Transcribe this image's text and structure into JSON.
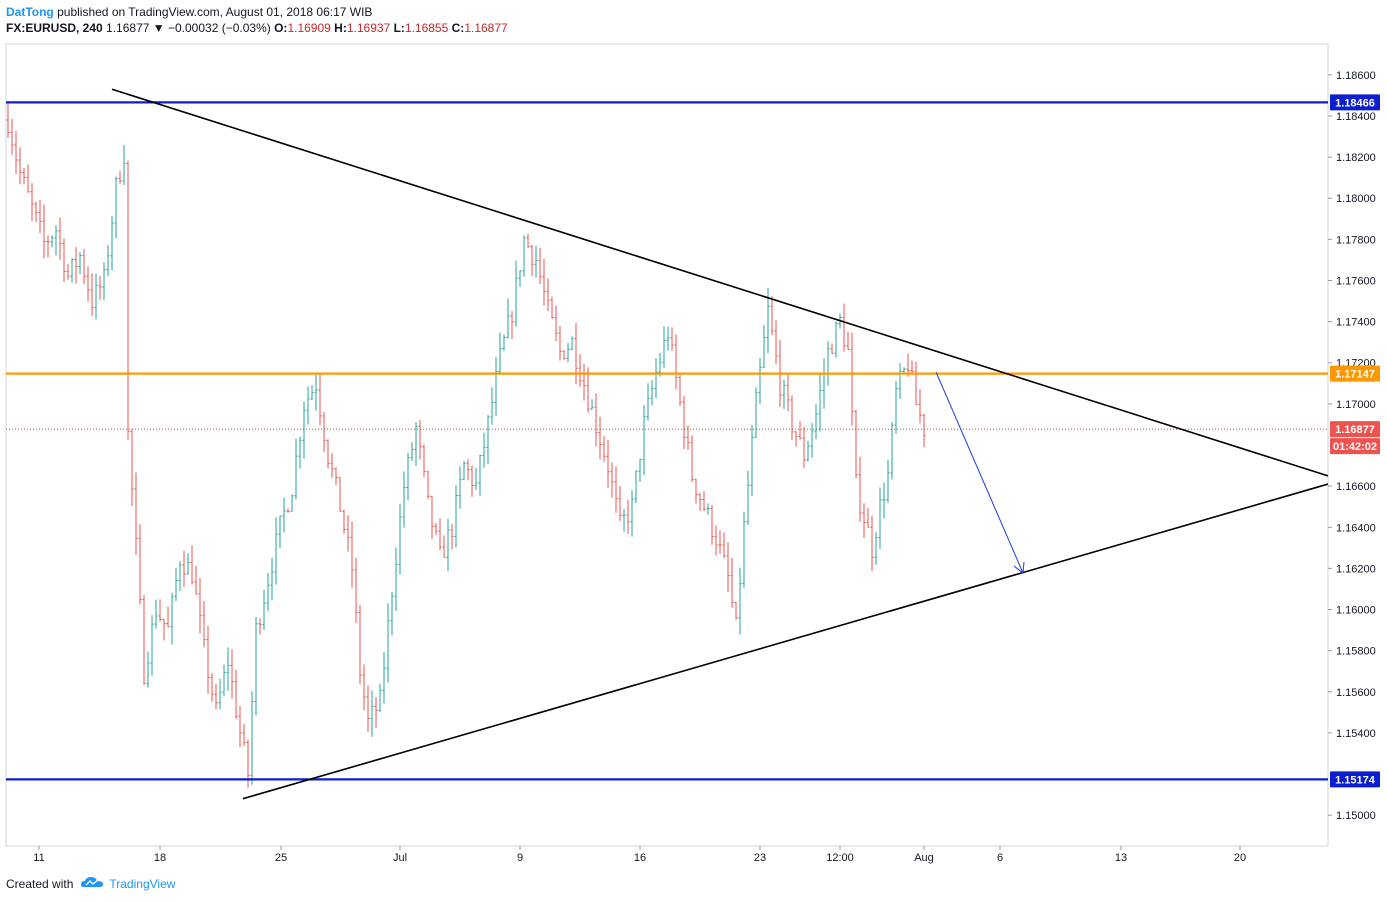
{
  "header": {
    "author": "DatTong",
    "published_text": "published on TradingView.com, August 01, 2018 06:17 WIB",
    "symbol": "FX:EURUSD, 240",
    "last": "1.16877",
    "change": "▼ −0.00032 (−0.03%)",
    "o_label": "O:",
    "o_value": "1.16909",
    "h_label": "H:",
    "h_value": "1.16937",
    "l_label": "L:",
    "l_value": "1.16855",
    "c_label": "C:",
    "c_value": "1.16877"
  },
  "footer": {
    "created_with": "Created with",
    "brand": "TradingView"
  },
  "colors": {
    "up": "#26a69a",
    "down": "#ef5350",
    "support_resistance": "#0b1fd1",
    "mid_level": "#ff9800",
    "trendline": "#000000",
    "arrow": "#1e3adb",
    "price_line": "#c62828"
  },
  "chart_data": {
    "type": "ohlc",
    "symbol": "FX:EURUSD",
    "timeframe": "240",
    "ylim": [
      1.1485,
      1.1875
    ],
    "y_ticks": [
      "1.18600",
      "1.18400",
      "1.18200",
      "1.18000",
      "1.17800",
      "1.17600",
      "1.17400",
      "1.17200",
      "1.17000",
      "1.16600",
      "1.16400",
      "1.16200",
      "1.16000",
      "1.15800",
      "1.15600",
      "1.15400",
      "1.15000"
    ],
    "x_ticks": [
      "11",
      "18",
      "25",
      "Jul",
      "9",
      "16",
      "23",
      "12:00",
      "Aug",
      "6",
      "13",
      "20"
    ],
    "current_price": "1.16877",
    "countdown": "01:42:02",
    "horizontal_levels": [
      {
        "label": "1.18466",
        "value": 1.18466,
        "color": "#0b1fd1"
      },
      {
        "label": "1.17147",
        "value": 1.17147,
        "color": "#ff9800"
      },
      {
        "label": "1.15174",
        "value": 1.15174,
        "color": "#0b1fd1"
      }
    ],
    "trendlines": [
      {
        "name": "upper",
        "from": [
          0.0,
          1.1853
        ],
        "to": [
          1.0,
          1.1665
        ]
      },
      {
        "name": "lower",
        "from": [
          0.0,
          1.1508
        ],
        "to": [
          1.0,
          1.1661
        ]
      }
    ],
    "anchors": [
      [
        0,
        1.1838
      ],
      [
        3,
        1.1812
      ],
      [
        6,
        1.1795
      ],
      [
        9,
        1.1778
      ],
      [
        12,
        1.1785
      ],
      [
        15,
        1.1762
      ],
      [
        18,
        1.1772
      ],
      [
        21,
        1.175
      ],
      [
        24,
        1.176
      ],
      [
        27,
        1.1805
      ],
      [
        29,
        1.1822
      ],
      [
        30,
        1.1685
      ],
      [
        32,
        1.163
      ],
      [
        34,
        1.157
      ],
      [
        37,
        1.16
      ],
      [
        40,
        1.159
      ],
      [
        43,
        1.1625
      ],
      [
        46,
        1.1618
      ],
      [
        49,
        1.158
      ],
      [
        52,
        1.155
      ],
      [
        55,
        1.1575
      ],
      [
        58,
        1.154
      ],
      [
        60,
        1.152
      ],
      [
        62,
        1.159
      ],
      [
        65,
        1.1615
      ],
      [
        68,
        1.164
      ],
      [
        71,
        1.166
      ],
      [
        74,
        1.17
      ],
      [
        77,
        1.171
      ],
      [
        80,
        1.1675
      ],
      [
        83,
        1.165
      ],
      [
        86,
        1.162
      ],
      [
        88,
        1.157
      ],
      [
        90,
        1.1545
      ],
      [
        93,
        1.1555
      ],
      [
        96,
        1.161
      ],
      [
        99,
        1.166
      ],
      [
        102,
        1.1688
      ],
      [
        105,
        1.165
      ],
      [
        108,
        1.1625
      ],
      [
        111,
        1.164
      ],
      [
        114,
        1.167
      ],
      [
        117,
        1.166
      ],
      [
        120,
        1.169
      ],
      [
        123,
        1.1722
      ],
      [
        126,
        1.1745
      ],
      [
        129,
        1.178
      ],
      [
        132,
        1.177
      ],
      [
        135,
        1.1745
      ],
      [
        138,
        1.1725
      ],
      [
        141,
        1.173
      ],
      [
        144,
        1.171
      ],
      [
        147,
        1.169
      ],
      [
        150,
        1.167
      ],
      [
        153,
        1.164
      ],
      [
        156,
        1.165
      ],
      [
        159,
        1.169
      ],
      [
        162,
        1.1715
      ],
      [
        165,
        1.1735
      ],
      [
        168,
        1.17
      ],
      [
        171,
        1.1665
      ],
      [
        174,
        1.165
      ],
      [
        177,
        1.1635
      ],
      [
        180,
        1.1615
      ],
      [
        182,
        1.159
      ],
      [
        184,
        1.164
      ],
      [
        187,
        1.17
      ],
      [
        190,
        1.1745
      ],
      [
        193,
        1.171
      ],
      [
        196,
        1.169
      ],
      [
        199,
        1.1675
      ],
      [
        202,
        1.1695
      ],
      [
        205,
        1.1725
      ],
      [
        208,
        1.174
      ],
      [
        210,
        1.1725
      ],
      [
        212,
        1.166
      ],
      [
        214,
        1.1645
      ],
      [
        216,
        1.163
      ],
      [
        218,
        1.165
      ],
      [
        220,
        1.1665
      ],
      [
        222,
        1.1705
      ],
      [
        225,
        1.172
      ],
      [
        227,
        1.17
      ],
      [
        229,
        1.1688
      ]
    ]
  }
}
